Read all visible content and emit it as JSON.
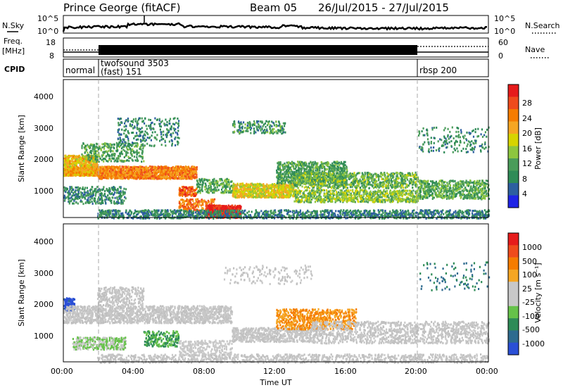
{
  "header": {
    "radar": "Prince George (fitACF)",
    "beam": "Beam 05",
    "dates": "26/Jul/2015 - 27/Jul/2015"
  },
  "status_panels": {
    "nsky_label": "N.Sky",
    "nsky_ticks": [
      "10^5",
      "10^0"
    ],
    "nsearch_label": "N.Search",
    "nsearch_ticks": [
      "10^5",
      "10^0"
    ],
    "freq_label_1": "Freq.",
    "freq_label_2": "[MHz]",
    "freq_ticks": [
      "18",
      "8"
    ],
    "nave_label": "Nave",
    "nave_ticks": [
      "60",
      "0"
    ],
    "cpid_label": "CPID",
    "cpid_segments": [
      {
        "name": "normal",
        "start": 0.0,
        "end": 1.9
      },
      {
        "name_1": "twofsound 3503",
        "name_2": "(fast) 151",
        "start": 1.9,
        "end": 20.0
      },
      {
        "name": "rbsp 200",
        "start": 20.0,
        "end": 24.0
      }
    ]
  },
  "x_axis": {
    "label": "Time UT",
    "ticks": [
      "00:00",
      "04:00",
      "08:00",
      "12:00",
      "16:00",
      "20:00",
      "00:00"
    ]
  },
  "power_panel": {
    "ylabel": "Slant Range [km]",
    "yticks": [
      "1000",
      "2000",
      "3000",
      "4000"
    ],
    "colorbar_label": "Power [dB]",
    "colorbar_ticks": [
      "4",
      "8",
      "12",
      "16",
      "20",
      "24",
      "28"
    ]
  },
  "velocity_panel": {
    "ylabel": "Slant Range [km]",
    "yticks": [
      "1000",
      "2000",
      "3000",
      "4000"
    ],
    "colorbar_label": "Velocity [m s⁻¹]",
    "colorbar_ticks": [
      "1000",
      "500",
      "100",
      "25",
      "-25",
      "-100",
      "-500",
      "-1000"
    ]
  },
  "colors": {
    "power_scale": [
      "#1f24e6",
      "#2d5fa0",
      "#2e8b57",
      "#4a9c5a",
      "#8dc63f",
      "#d7d400",
      "#f5a623",
      "#f57c00",
      "#ef4b1c",
      "#e61b1b"
    ],
    "velocity_scale": [
      "#2a4fd6",
      "#2e6b8f",
      "#2e8b57",
      "#66c24a",
      "#c8c8c8",
      "#c8c8c8",
      "#f5a623",
      "#f57c00",
      "#ef4b1c",
      "#e61b1b"
    ],
    "ground_scatter": "#c0c0c0"
  },
  "chart_data": [
    {
      "type": "heatmap",
      "title": "Power [dB]",
      "xlabel": "Time UT",
      "ylabel": "Slant Range [km]",
      "xlim": [
        0,
        24
      ],
      "ylim": [
        180,
        4600
      ],
      "cmin": 0,
      "cmax": 30,
      "regions": [
        {
          "t0": 0.0,
          "t1": 1.9,
          "r0": 1550,
          "r1": 1850,
          "v": 20,
          "n": 520
        },
        {
          "t0": 0.0,
          "t1": 1.9,
          "r0": 1850,
          "r1": 2200,
          "v": 18,
          "n": 360
        },
        {
          "t0": 1.9,
          "t1": 7.5,
          "r0": 1450,
          "r1": 1850,
          "v": 22,
          "n": 1500
        },
        {
          "t0": 1.0,
          "t1": 4.5,
          "r0": 2000,
          "r1": 2600,
          "v": 10,
          "n": 320
        },
        {
          "t0": 3.0,
          "t1": 6.5,
          "r0": 2500,
          "r1": 3400,
          "v": 8,
          "n": 280
        },
        {
          "t0": 0.0,
          "t1": 3.5,
          "r0": 650,
          "r1": 1200,
          "v": 8,
          "n": 340
        },
        {
          "t0": 6.5,
          "t1": 7.5,
          "r0": 900,
          "r1": 1200,
          "v": 24,
          "n": 130
        },
        {
          "t0": 6.5,
          "t1": 8.5,
          "r0": 400,
          "r1": 800,
          "v": 23,
          "n": 200
        },
        {
          "t0": 8.0,
          "t1": 10.0,
          "r0": 200,
          "r1": 600,
          "v": 29,
          "n": 520
        },
        {
          "t0": 7.5,
          "t1": 9.5,
          "r0": 1000,
          "r1": 1450,
          "v": 10,
          "n": 200
        },
        {
          "t0": 9.5,
          "t1": 13.0,
          "r0": 850,
          "r1": 1300,
          "v": 17,
          "n": 780
        },
        {
          "t0": 9.5,
          "t1": 12.5,
          "r0": 2900,
          "r1": 3300,
          "v": 9,
          "n": 180
        },
        {
          "t0": 12.0,
          "t1": 16.0,
          "r0": 1300,
          "r1": 2000,
          "v": 10,
          "n": 760
        },
        {
          "t0": 13.0,
          "t1": 20.0,
          "r0": 1150,
          "r1": 1650,
          "v": 12,
          "n": 900
        },
        {
          "t0": 13.0,
          "t1": 20.0,
          "r0": 700,
          "r1": 1100,
          "v": 13,
          "n": 820
        },
        {
          "t0": 20.0,
          "t1": 24.0,
          "r0": 800,
          "r1": 1400,
          "v": 11,
          "n": 620
        },
        {
          "t0": 20.0,
          "t1": 24.0,
          "r0": 2300,
          "r1": 3100,
          "v": 8,
          "n": 180
        },
        {
          "t0": 1.9,
          "t1": 24.0,
          "r0": 180,
          "r1": 450,
          "v": 7,
          "n": 1500
        }
      ]
    },
    {
      "type": "heatmap",
      "title": "Velocity [m s⁻¹]",
      "xlabel": "Time UT",
      "ylabel": "Slant Range [km]",
      "xlim": [
        0,
        24
      ],
      "ylim": [
        180,
        4600
      ],
      "cmin": -1000,
      "cmax": 1000,
      "regions": [
        {
          "t0": 0.0,
          "t1": 0.6,
          "r0": 1850,
          "r1": 2250,
          "v": -900,
          "n": 130
        },
        {
          "t0": 0.0,
          "t1": 9.5,
          "r0": 1450,
          "r1": 2000,
          "v": 0,
          "n": 1600
        },
        {
          "t0": 1.9,
          "t1": 4.5,
          "r0": 2000,
          "r1": 2600,
          "v": 0,
          "n": 300
        },
        {
          "t0": 0.5,
          "t1": 3.5,
          "r0": 600,
          "r1": 1000,
          "v": -200,
          "n": 320
        },
        {
          "t0": 4.5,
          "t1": 6.5,
          "r0": 700,
          "r1": 1200,
          "v": -400,
          "n": 200
        },
        {
          "t0": 6.5,
          "t1": 9.5,
          "r0": 400,
          "r1": 900,
          "v": 60,
          "n": 260
        },
        {
          "t0": 9.5,
          "t1": 14.0,
          "r0": 850,
          "r1": 1300,
          "v": 0,
          "n": 600
        },
        {
          "t0": 12.0,
          "t1": 16.5,
          "r0": 1250,
          "r1": 1900,
          "v": 400,
          "n": 650
        },
        {
          "t0": 14.0,
          "t1": 24.0,
          "r0": 800,
          "r1": 1500,
          "v": 0,
          "n": 1200
        },
        {
          "t0": 9.0,
          "t1": 14.0,
          "r0": 2700,
          "r1": 3300,
          "v": 0,
          "n": 150
        },
        {
          "t0": 20.0,
          "t1": 24.0,
          "r0": 2500,
          "r1": 3400,
          "v": -600,
          "n": 90
        },
        {
          "t0": 1.9,
          "t1": 24.0,
          "r0": 180,
          "r1": 450,
          "v": 0,
          "n": 1100
        }
      ]
    }
  ]
}
